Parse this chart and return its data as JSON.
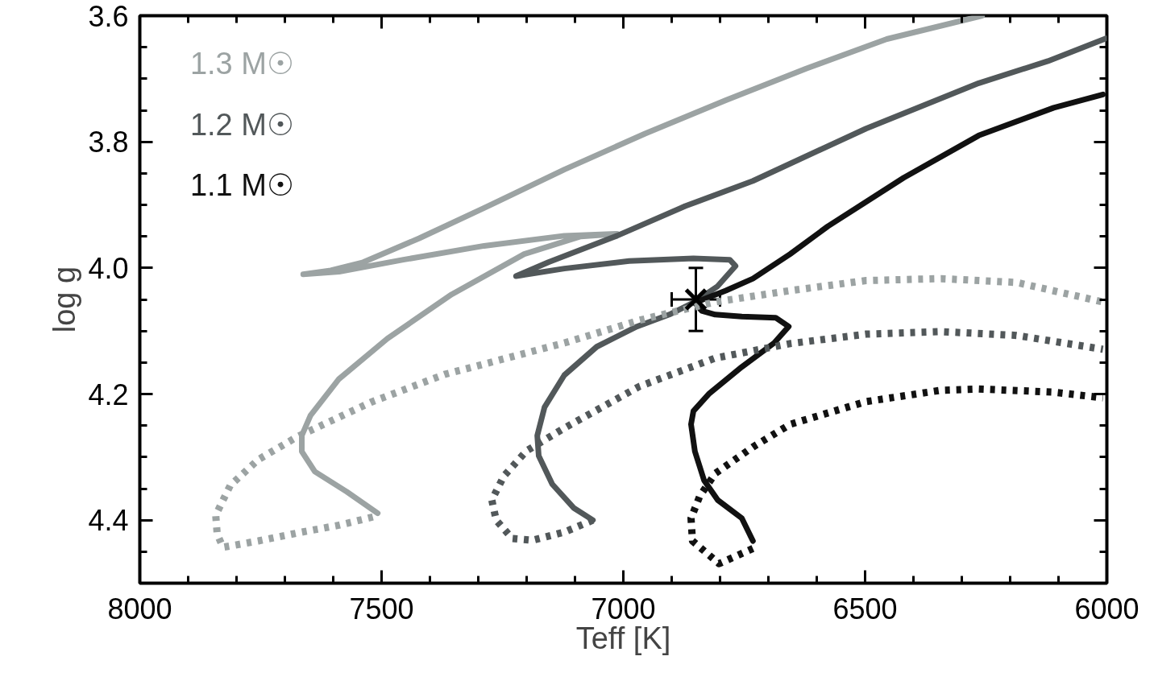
{
  "chart_data": {
    "type": "line",
    "xlabel": "Teff [K]",
    "ylabel": "log g",
    "xlim": [
      8000,
      6000
    ],
    "xticks": [
      8000,
      7500,
      7000,
      6500,
      6000
    ],
    "ylim": [
      4.5,
      3.6
    ],
    "yticks": [
      3.6,
      3.8,
      {
        "value": 4.0,
        "label": "4.0"
      },
      4.2,
      4.4
    ],
    "grid": false,
    "legend": "top left",
    "marker": "none",
    "series": [
      {
        "name": "1.3 M☉",
        "color": "#9ca3a3",
        "line_style": "solid",
        "x": [
          7508,
          7572,
          7638,
          7665,
          7665,
          7647,
          7588,
          7488,
          7355,
          7205,
          7088,
          7013,
          7122,
          7288,
          7455,
          7588,
          7662,
          7605,
          7538,
          7422,
          7288,
          7122,
          6955,
          6788,
          6622,
          6455,
          6258
        ],
        "values": [
          4.389,
          4.355,
          4.323,
          4.291,
          4.266,
          4.234,
          4.176,
          4.112,
          4.042,
          3.978,
          3.95,
          3.946,
          3.949,
          3.965,
          3.987,
          4.006,
          4.01,
          4.004,
          3.991,
          3.953,
          3.905,
          3.844,
          3.787,
          3.734,
          3.684,
          3.637,
          3.6
        ]
      },
      {
        "name": "1.2 M☉",
        "color": "#52585a",
        "line_style": "solid",
        "x": [
          7063,
          7102,
          7147,
          7175,
          7178,
          7163,
          7122,
          7055,
          6972,
          6905,
          6855,
          6805,
          6768,
          6780,
          6855,
          6988,
          7122,
          7222,
          7155,
          7013,
          6872,
          6732,
          6498,
          6265,
          6122,
          6002
        ],
        "values": [
          4.4,
          4.381,
          4.343,
          4.298,
          4.266,
          4.221,
          4.17,
          4.125,
          4.093,
          4.074,
          4.055,
          4.029,
          3.997,
          3.987,
          3.985,
          3.989,
          4.001,
          4.013,
          3.991,
          3.949,
          3.902,
          3.862,
          3.779,
          3.707,
          3.672,
          3.636
        ]
      },
      {
        "name": "1.1 M☉",
        "color": "#111111",
        "line_style": "solid",
        "x": [
          6732,
          6755,
          6805,
          6833,
          6852,
          6860,
          6855,
          6822,
          6755,
          6688,
          6658,
          6685,
          6755,
          6810,
          6838,
          6852,
          6788,
          6732,
          6655,
          6577,
          6420,
          6265,
          6110,
          6008
        ],
        "values": [
          4.433,
          4.397,
          4.368,
          4.337,
          4.291,
          4.248,
          4.227,
          4.199,
          4.157,
          4.119,
          4.093,
          4.079,
          4.077,
          4.074,
          4.068,
          4.055,
          4.036,
          4.017,
          3.978,
          3.934,
          3.857,
          3.79,
          3.746,
          3.725
        ]
      },
      {
        "color": "#9ca3a3",
        "line_style": "dotted",
        "x": [
          7518,
          7588,
          7672,
          7755,
          7828,
          7840,
          7843,
          7813,
          7755,
          7675,
          7522,
          7370,
          7122,
          6967,
          6810,
          6655,
          6498,
          6343,
          6187,
          6008
        ],
        "values": [
          4.395,
          4.408,
          4.42,
          4.433,
          4.443,
          4.422,
          4.392,
          4.345,
          4.304,
          4.268,
          4.213,
          4.169,
          4.119,
          4.083,
          4.054,
          4.036,
          4.02,
          4.017,
          4.023,
          4.054
        ]
      },
      {
        "color": "#52585a",
        "line_style": "dotted",
        "x": [
          7063,
          7122,
          7188,
          7230,
          7263,
          7272,
          7247,
          7200,
          7122,
          6967,
          6810,
          6655,
          6498,
          6343,
          6187,
          6008
        ],
        "values": [
          4.4,
          4.419,
          4.432,
          4.429,
          4.4,
          4.368,
          4.33,
          4.29,
          4.254,
          4.188,
          4.143,
          4.12,
          4.105,
          4.101,
          4.107,
          4.129
        ]
      },
      {
        "color": "#111111",
        "line_style": "dotted",
        "x": [
          6732,
          6802,
          6857,
          6860,
          6842,
          6810,
          6732,
          6655,
          6498,
          6343,
          6265,
          6110,
          6008
        ],
        "values": [
          4.445,
          4.469,
          4.433,
          4.397,
          4.362,
          4.326,
          4.284,
          4.248,
          4.212,
          4.194,
          4.192,
          4.197,
          4.206
        ]
      },
      {
        "type": "scatter",
        "marker": "cross",
        "color": "#000000",
        "x": [
          6850
        ],
        "values": [
          4.05
        ],
        "errors": [
          0.05
        ],
        "xerrors": [
          50
        ]
      }
    ]
  }
}
